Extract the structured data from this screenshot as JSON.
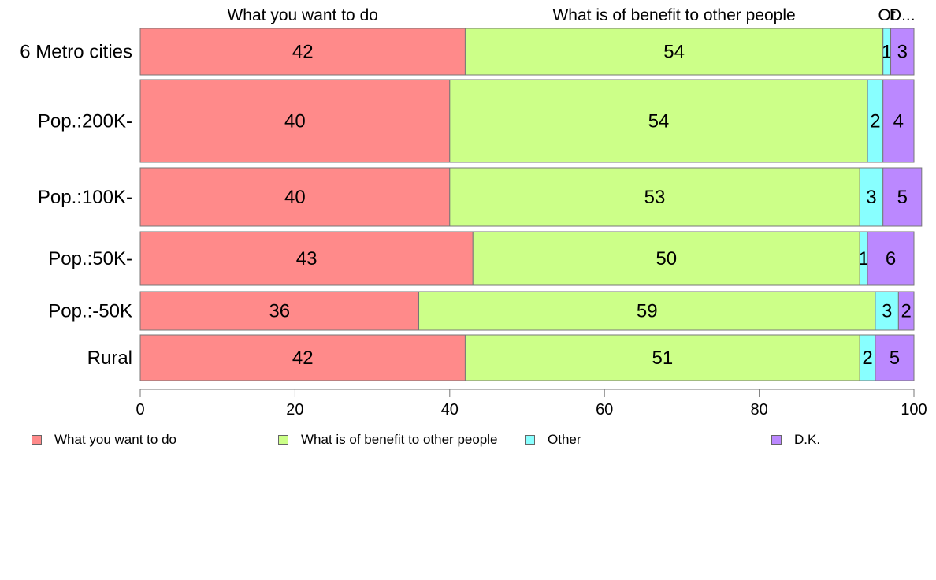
{
  "chart_data": {
    "type": "bar",
    "orientation": "horizontal",
    "stacked": true,
    "categories": [
      "6 Metro cities",
      "Pop.:200K-",
      "Pop.:100K-",
      "Pop.:50K-",
      "Pop.:-50K",
      "Rural"
    ],
    "series": [
      {
        "name": "What you want to do",
        "color": "#ff8a8a",
        "values": [
          42,
          40,
          40,
          43,
          36,
          42
        ]
      },
      {
        "name": "What is of benefit to other people",
        "color": "#ccff88",
        "values": [
          54,
          54,
          53,
          50,
          59,
          51
        ]
      },
      {
        "name": "Other",
        "color": "#88ffff",
        "values": [
          1,
          2,
          3,
          1,
          3,
          2
        ]
      },
      {
        "name": "D.K.",
        "color": "#bb88ff",
        "values": [
          3,
          4,
          5,
          6,
          2,
          5
        ]
      }
    ],
    "top_labels": [
      "What you want to do",
      "What is of benefit to other people",
      "Ot",
      "D..."
    ],
    "xlim": [
      0,
      100
    ],
    "xticks": [
      0,
      20,
      40,
      60,
      80,
      100
    ],
    "grid": false,
    "legend_position": "bottom"
  }
}
